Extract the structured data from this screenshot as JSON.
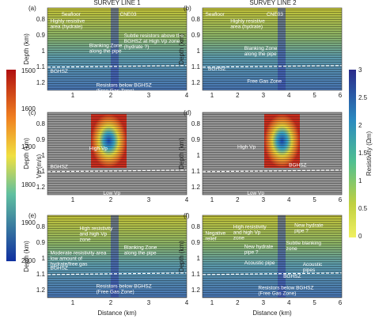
{
  "titles": [
    "SURVEY LINE 1",
    "SURVEY LINE 2"
  ],
  "vp_colorbar": {
    "label": "Vp (m/s)",
    "ticks": [
      "1500",
      "1600",
      "1700",
      "1800",
      "1900",
      "2000"
    ]
  },
  "resistivity_colorbar": {
    "label": "Resistivity (Ωm)",
    "ticks": [
      "3",
      "2.5",
      "2",
      "1.5",
      "1",
      "0.5",
      "0"
    ]
  },
  "depth_ticks": [
    "0.8",
    "0.9",
    "1",
    "1.1",
    "1.2"
  ],
  "panels": [
    {
      "label": "(a)",
      "y_label": "Depth (km)",
      "x_ticks": [
        "1",
        "2",
        "3",
        "4"
      ],
      "annotations": [
        {
          "lines": [
            "Seafloor"
          ]
        },
        {
          "lines": [
            "CNE03"
          ]
        },
        {
          "lines": [
            "Highly resistive",
            "area (hydrate)"
          ]
        },
        {
          "lines": [
            "Subtle resistors above the",
            "BGHSZ at High Vp zone",
            "(hydrate ?)"
          ]
        },
        {
          "lines": [
            "Blanking Zone",
            "along the pipe"
          ]
        },
        {
          "lines": [
            "BGHSZ"
          ]
        },
        {
          "lines": [
            "Resistors below BGHSZ",
            "(Free Gas Zone)"
          ]
        }
      ]
    },
    {
      "label": "(b)",
      "y_label": "Depth (km)",
      "x_ticks": [
        "1",
        "2",
        "3",
        "4",
        "5",
        "6"
      ],
      "annotations": [
        {
          "lines": [
            "Seafloor"
          ]
        },
        {
          "lines": [
            "CNE03"
          ]
        },
        {
          "lines": [
            "Highly resistive",
            "area (hydrate)"
          ]
        },
        {
          "lines": [
            "Blanking Zone",
            "along the pipe"
          ]
        },
        {
          "lines": [
            "BGHSZ"
          ]
        },
        {
          "lines": [
            "Free Gas Zone"
          ]
        }
      ]
    },
    {
      "label": "(c)",
      "y_label": "Depth (km)",
      "x_ticks": [
        "1",
        "2",
        "3",
        "4"
      ],
      "annotations": [
        {
          "lines": [
            "High Vp"
          ]
        },
        {
          "lines": [
            "BGHSZ"
          ]
        },
        {
          "lines": [
            "Low Vp"
          ]
        }
      ]
    },
    {
      "label": "(d)",
      "y_label": "Depth (km)",
      "x_ticks": [
        "1",
        "2",
        "3",
        "4",
        "5",
        "6"
      ],
      "annotations": [
        {
          "lines": [
            "High Vp"
          ]
        },
        {
          "lines": [
            "BGHSZ"
          ]
        },
        {
          "lines": [
            "Low Vp"
          ]
        }
      ]
    },
    {
      "label": "(e)",
      "y_label": "Depth (km)",
      "x_label": "Distance (km)",
      "x_ticks": [
        "1",
        "2",
        "3",
        "4"
      ],
      "annotations": [
        {
          "lines": [
            "High resistivity",
            "and high Vp",
            "zone"
          ]
        },
        {
          "lines": [
            "Moderate resistivity area",
            "low amount of",
            "hydrate/free gas"
          ]
        },
        {
          "lines": [
            "BGHSZ"
          ]
        },
        {
          "lines": [
            "Blanking Zone",
            "along the pipe"
          ]
        },
        {
          "lines": [
            "Resistors below BGHSZ",
            "(Free Gas Zone)"
          ]
        }
      ]
    },
    {
      "label": "(f)",
      "y_label": "Depth (km)",
      "x_label": "Distance (km)",
      "x_ticks": [
        "1",
        "2",
        "3",
        "4",
        "5",
        "6"
      ],
      "annotations": [
        {
          "lines": [
            "Negative",
            "relief"
          ]
        },
        {
          "lines": [
            "High resistivity",
            "and high Vp",
            "zone"
          ]
        },
        {
          "lines": [
            "New hydrate",
            "pipe ?"
          ]
        },
        {
          "lines": [
            "New hydrate",
            "pipe ?"
          ]
        },
        {
          "lines": [
            "Subtle blanking",
            "zone"
          ]
        },
        {
          "lines": [
            "Acoustic pipe"
          ]
        },
        {
          "lines": [
            "Acoustic",
            "pipes"
          ]
        },
        {
          "lines": [
            "BGHSZ"
          ]
        },
        {
          "lines": [
            "Resistors below BGHSZ",
            "(Free Gas Zone)"
          ]
        }
      ]
    }
  ]
}
